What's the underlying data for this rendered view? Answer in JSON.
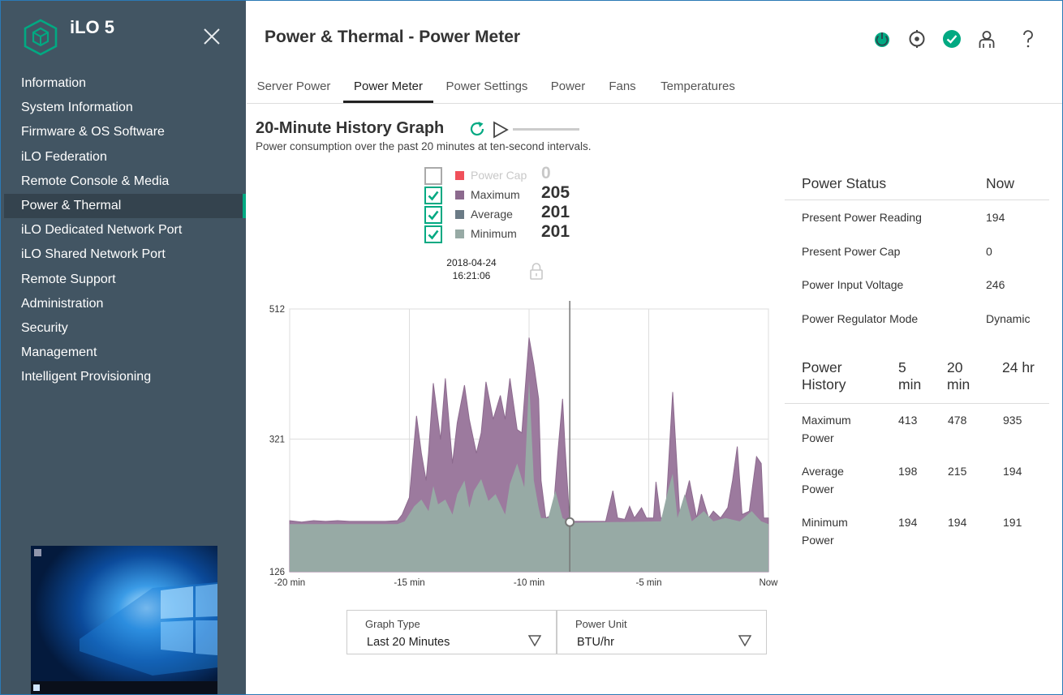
{
  "app": {
    "title": "iLO 5"
  },
  "sidebar": {
    "items": [
      {
        "label": "Information"
      },
      {
        "label": "System Information"
      },
      {
        "label": "Firmware & OS Software"
      },
      {
        "label": "iLO Federation"
      },
      {
        "label": "Remote Console & Media"
      },
      {
        "label": "Power & Thermal"
      },
      {
        "label": "iLO Dedicated Network Port"
      },
      {
        "label": "iLO Shared Network Port"
      },
      {
        "label": "Remote Support"
      },
      {
        "label": "Administration"
      },
      {
        "label": "Security"
      },
      {
        "label": "Management"
      },
      {
        "label": "Intelligent Provisioning"
      }
    ],
    "active_index": 5
  },
  "header": {
    "title": "Power & Thermal - Power Meter",
    "icons": [
      "power-icon",
      "uid-locate-icon",
      "health-ok-icon",
      "user-icon",
      "help-icon"
    ]
  },
  "tabs": [
    {
      "label": "Server Power"
    },
    {
      "label": "Power Meter"
    },
    {
      "label": "Power Settings"
    },
    {
      "label": "Power"
    },
    {
      "label": "Fans"
    },
    {
      "label": "Temperatures"
    }
  ],
  "active_tab": 1,
  "history": {
    "title": "20-Minute History Graph",
    "description": "Power consumption over the past 20 minutes at ten-second intervals."
  },
  "legend": [
    {
      "label": "Power Cap",
      "value": "0",
      "checked": false,
      "color": "#f0505a"
    },
    {
      "label": "Maximum",
      "value": "205",
      "checked": true,
      "color": "#8c6a8e"
    },
    {
      "label": "Average",
      "value": "201",
      "checked": true,
      "color": "#6b7b86"
    },
    {
      "label": "Minimum",
      "value": "201",
      "checked": true,
      "color": "#97aaa5"
    }
  ],
  "cursor": {
    "date": "2018-04-24",
    "time": "16:21:06"
  },
  "chart_data": {
    "type": "area",
    "x_ticks": [
      "-20 min",
      "-15 min",
      "-10 min",
      "-5 min",
      "Now"
    ],
    "y_ticks": [
      512,
      321,
      126
    ],
    "ylim": [
      126,
      512
    ],
    "xlim": [
      -20,
      0
    ],
    "cursor_x": -8.3,
    "grid": true,
    "series": [
      {
        "name": "Maximum",
        "color": "#9c7a9e",
        "points": [
          [
            -20,
            201
          ],
          [
            -19.5,
            199
          ],
          [
            -19,
            201
          ],
          [
            -18.5,
            200
          ],
          [
            -18,
            201
          ],
          [
            -17.5,
            200
          ],
          [
            -16,
            200
          ],
          [
            -15.5,
            201
          ],
          [
            -15.3,
            210
          ],
          [
            -15,
            235
          ],
          [
            -14.7,
            355
          ],
          [
            -14.5,
            300
          ],
          [
            -14.3,
            260
          ],
          [
            -14.2,
            300
          ],
          [
            -14,
            403
          ],
          [
            -13.7,
            320
          ],
          [
            -13.5,
            410
          ],
          [
            -13.2,
            285
          ],
          [
            -13,
            345
          ],
          [
            -12.7,
            400
          ],
          [
            -12.5,
            350
          ],
          [
            -12.2,
            300
          ],
          [
            -12,
            330
          ],
          [
            -11.8,
            405
          ],
          [
            -11.5,
            350
          ],
          [
            -11.2,
            385
          ],
          [
            -11,
            350
          ],
          [
            -10.8,
            410
          ],
          [
            -10.5,
            335
          ],
          [
            -10.3,
            330
          ],
          [
            -10,
            470
          ],
          [
            -9.8,
            430
          ],
          [
            -9.6,
            380
          ],
          [
            -9.5,
            260
          ],
          [
            -9.3,
            205
          ],
          [
            -9,
            210
          ],
          [
            -8.8,
            300
          ],
          [
            -8.6,
            380
          ],
          [
            -8.5,
            310
          ],
          [
            -8.3,
            200
          ],
          [
            -6.8,
            200
          ],
          [
            -6.5,
            245
          ],
          [
            -6.3,
            205
          ],
          [
            -6,
            203
          ],
          [
            -5.8,
            222
          ],
          [
            -5.6,
            205
          ],
          [
            -5.3,
            220
          ],
          [
            -5.1,
            205
          ],
          [
            -4.8,
            205
          ],
          [
            -4.7,
            258
          ],
          [
            -4.5,
            205
          ],
          [
            -4.3,
            205
          ],
          [
            -4,
            390
          ],
          [
            -3.7,
            205
          ],
          [
            -3.3,
            260
          ],
          [
            -3,
            205
          ],
          [
            -2.8,
            240
          ],
          [
            -2.5,
            205
          ],
          [
            -2.3,
            215
          ],
          [
            -2,
            205
          ],
          [
            -1.7,
            220
          ],
          [
            -1.5,
            260
          ],
          [
            -1.3,
            310
          ],
          [
            -1.1,
            210
          ],
          [
            -0.8,
            215
          ],
          [
            -0.5,
            295
          ],
          [
            -0.3,
            285
          ],
          [
            -0.2,
            205
          ],
          [
            0,
            205
          ]
        ]
      },
      {
        "name": "Minimum",
        "color": "#97aaa5",
        "points": [
          [
            -20,
            196
          ],
          [
            -15.5,
            196
          ],
          [
            -15.2,
            200
          ],
          [
            -14.8,
            222
          ],
          [
            -14.5,
            232
          ],
          [
            -14.2,
            215
          ],
          [
            -14,
            252
          ],
          [
            -13.8,
            225
          ],
          [
            -13.5,
            232
          ],
          [
            -13.2,
            210
          ],
          [
            -13,
            240
          ],
          [
            -12.7,
            260
          ],
          [
            -12.5,
            220
          ],
          [
            -12.3,
            245
          ],
          [
            -12,
            262
          ],
          [
            -11.7,
            230
          ],
          [
            -11.4,
            240
          ],
          [
            -11,
            210
          ],
          [
            -10.8,
            255
          ],
          [
            -10.5,
            285
          ],
          [
            -10.2,
            250
          ],
          [
            -10,
            408
          ],
          [
            -9.8,
            260
          ],
          [
            -9.6,
            220
          ],
          [
            -9.5,
            205
          ],
          [
            -9.2,
            205
          ],
          [
            -8.9,
            245
          ],
          [
            -8.6,
            205
          ],
          [
            -8.3,
            198
          ],
          [
            -4.5,
            200
          ],
          [
            -4.2,
            245
          ],
          [
            -4,
            270
          ],
          [
            -3.8,
            205
          ],
          [
            -3.5,
            240
          ],
          [
            -3.2,
            200
          ],
          [
            -2.7,
            215
          ],
          [
            -2.3,
            200
          ],
          [
            -1.8,
            205
          ],
          [
            -1.2,
            200
          ],
          [
            -0.7,
            215
          ],
          [
            -0.3,
            200
          ],
          [
            0,
            196
          ]
        ]
      }
    ]
  },
  "dropdowns": {
    "graph_type": {
      "label": "Graph Type",
      "value": "Last 20 Minutes"
    },
    "power_unit": {
      "label": "Power Unit",
      "value": "BTU/hr"
    }
  },
  "power_status": {
    "header": {
      "label": "Power Status",
      "now": "Now"
    },
    "rows": [
      {
        "label": "Present Power Reading",
        "value": "194"
      },
      {
        "label": "Present Power Cap",
        "value": "0"
      },
      {
        "label": "Power Input Voltage",
        "value": "246"
      },
      {
        "label": "Power Regulator Mode",
        "value": "Dynamic"
      }
    ]
  },
  "power_history": {
    "header": {
      "label": "Power History",
      "c1": "5 min",
      "c2": "20 min",
      "c3": "24 hr"
    },
    "rows": [
      {
        "label": "Maximum Power",
        "v1": "413",
        "v2": "478",
        "v3": "935"
      },
      {
        "label": "Average Power",
        "v1": "198",
        "v2": "215",
        "v3": "194"
      },
      {
        "label": "Minimum Power",
        "v1": "194",
        "v2": "194",
        "v3": "191"
      }
    ]
  }
}
